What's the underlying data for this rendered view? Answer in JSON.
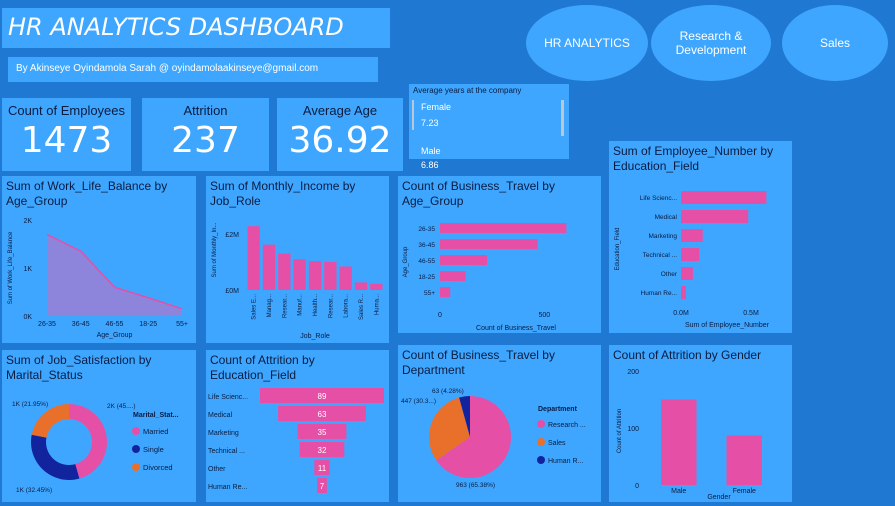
{
  "header": {
    "title": "HR ANALYTICS DASHBOARD",
    "author": "By Akinseye Oyindamola Sarah @ oyindamolaakinseye@gmail.com"
  },
  "nav": {
    "hr": "HR ANALYTICS",
    "rd": "Research & Development",
    "sales": "Sales"
  },
  "kpis": {
    "employees_label": "Count of Employees",
    "employees_value": "1473",
    "attrition_label": "Attrition",
    "attrition_value": "237",
    "age_label": "Average Age",
    "age_value": "36.92"
  },
  "avg_years": {
    "title": "Average years at the company",
    "female_label": "Female",
    "female_value": "7.23",
    "male_label": "Male",
    "male_value": "6.86"
  },
  "colors": {
    "pink": "#e64fa6",
    "orange": "#e8702a",
    "navy": "#12239e",
    "panel": "#3ea6ff",
    "bg": "#1f78d1"
  },
  "chart_data": [
    {
      "id": "wlb",
      "type": "area",
      "title": "Sum of Work_Life_Balance by Age_Group",
      "xlabel": "Age_Group",
      "ylabel": "Sum of Work_Life_Balance",
      "categories": [
        "26-35",
        "36-45",
        "46-55",
        "18-25",
        "55+"
      ],
      "values": [
        1700,
        1350,
        600,
        380,
        150
      ],
      "yticks": [
        "0K",
        "1K",
        "2K"
      ],
      "ylim": [
        0,
        2000
      ]
    },
    {
      "id": "income",
      "type": "bar",
      "title": "Sum of Monthly_Income by Job_Role",
      "xlabel": "Job_Role",
      "ylabel": "Sum of Monthly_In...",
      "categories": [
        "Sales E...",
        "Manag...",
        "Resear...",
        "Manuf...",
        "Health...",
        "Resear...",
        "Labora...",
        "Sales R...",
        "Huma..."
      ],
      "values": [
        2280000,
        1620000,
        1300000,
        1100000,
        1030000,
        1000000,
        840000,
        270000,
        220000
      ],
      "yticks": [
        "£0M",
        "£2M"
      ],
      "ylim": [
        0,
        2500000
      ]
    },
    {
      "id": "travel_age",
      "type": "bar",
      "title": "Count of Business_Travel by Age_Group",
      "xlabel": "Count of Business_Travel",
      "ylabel": "Age_Group",
      "categories": [
        "26-35",
        "36-45",
        "46-55",
        "18-25",
        "55+"
      ],
      "values": [
        606,
        468,
        226,
        123,
        49
      ],
      "xticks": [
        "0",
        "500"
      ],
      "xlim": [
        0,
        700
      ]
    },
    {
      "id": "emp_edu",
      "type": "bar",
      "title": "Sum of Employee_Number by Education_Field",
      "xlabel": "Sum of Employee_Number",
      "ylabel": "Education_Field",
      "categories": [
        "Life Scienc...",
        "Medical",
        "Marketing",
        "Technical ...",
        "Other",
        "Human Re..."
      ],
      "values": [
        610000,
        480000,
        155000,
        130000,
        85000,
        35000
      ],
      "xticks": [
        "0.0M",
        "0.5M"
      ],
      "xlim": [
        0,
        700000
      ]
    },
    {
      "id": "jobsat",
      "type": "pie",
      "title": "Sum of Job_Satisfaction by Marital_Status",
      "legend_title": "Marital_Stat...",
      "labels": [
        "Married",
        "Single",
        "Divorced"
      ],
      "values": [
        45.6,
        32.45,
        21.95
      ],
      "slice_labels": [
        "2K (45....)",
        "1K (32.45%)",
        "1K (21.95%)"
      ]
    },
    {
      "id": "attr_edu",
      "type": "bar",
      "title": "Count of Attrition by Education_Field",
      "categories": [
        "Life Scienc...",
        "Medical",
        "Marketing",
        "Technical ...",
        "Other",
        "Human Re..."
      ],
      "values": [
        89,
        63,
        35,
        32,
        11,
        7
      ]
    },
    {
      "id": "travel_dept",
      "type": "pie",
      "title": "Count of Business_Travel by Department",
      "legend_title": "Department",
      "labels": [
        "Research ...",
        "Sales",
        "Human R..."
      ],
      "values": [
        963,
        447,
        63
      ],
      "slice_labels": [
        "963 (65.38%)",
        "447 (30.3...)",
        "63 (4.28%)"
      ]
    },
    {
      "id": "attr_gender",
      "type": "bar",
      "title": "Count of Attrition by Gender",
      "xlabel": "Gender",
      "ylabel": "Count of Attrition",
      "categories": [
        "Male",
        "Female"
      ],
      "values": [
        150,
        87
      ],
      "yticks": [
        "0",
        "100",
        "200"
      ],
      "ylim": [
        0,
        200
      ]
    }
  ]
}
